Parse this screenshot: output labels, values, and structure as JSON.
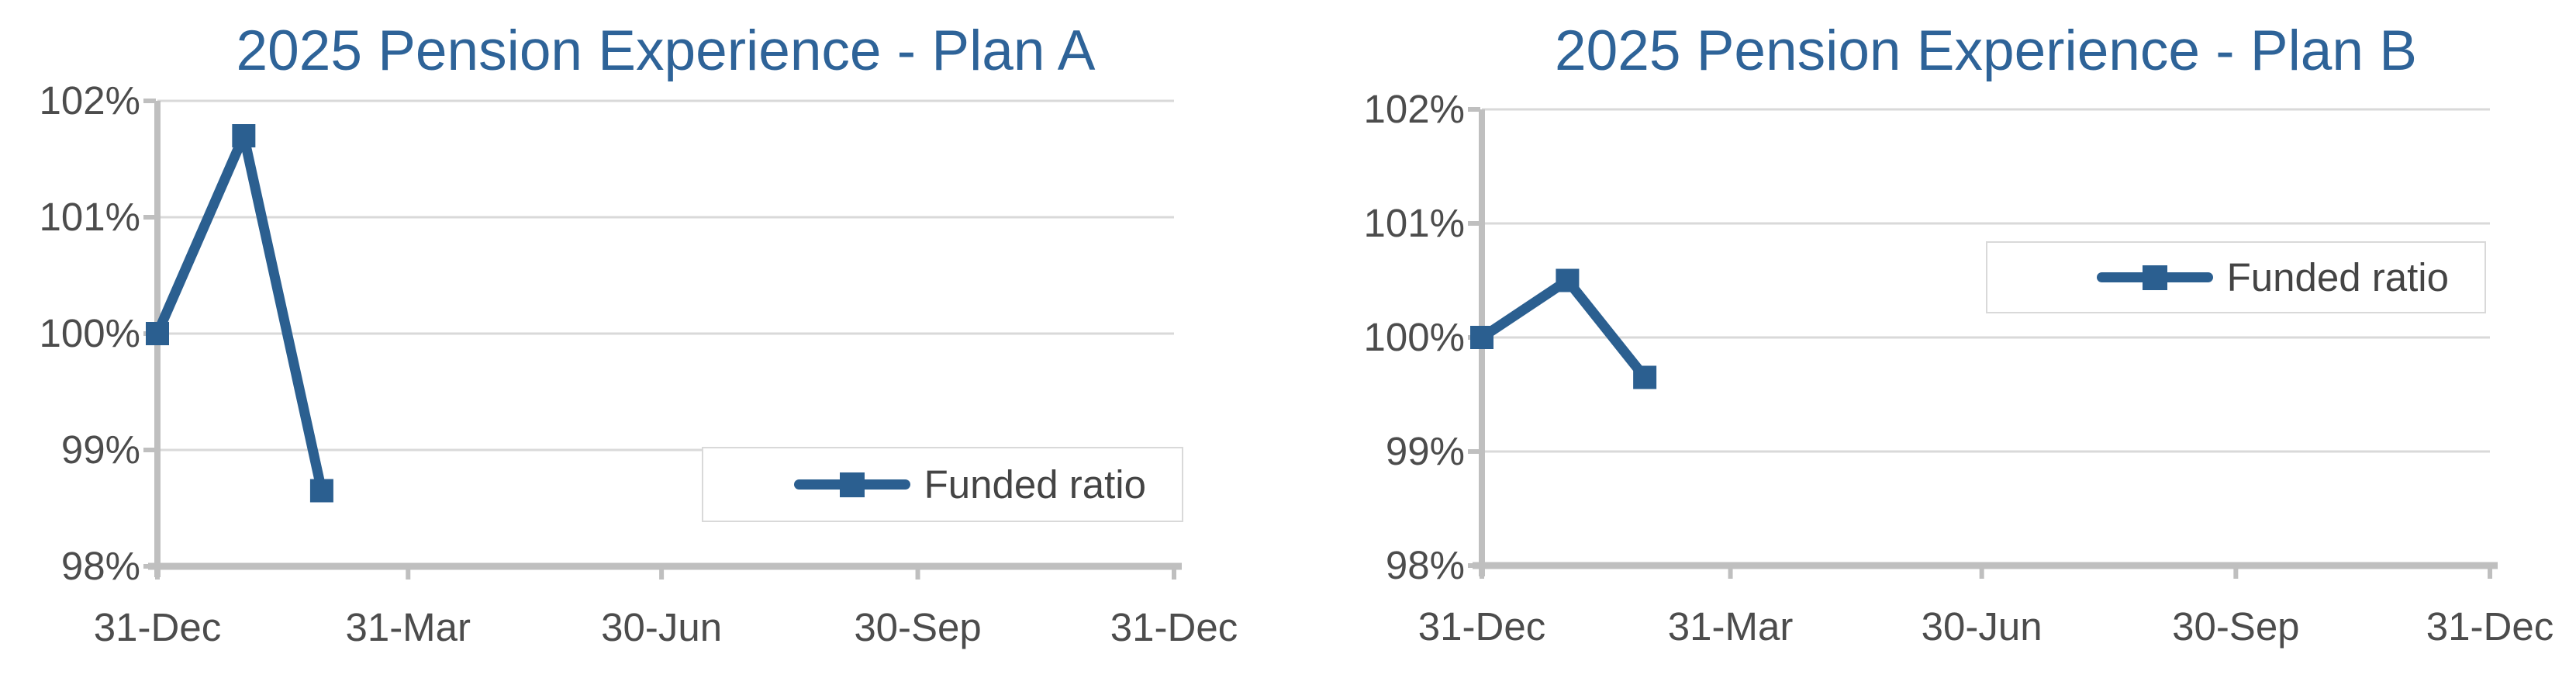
{
  "page": {
    "background": "#FFFFFF"
  },
  "palette": {
    "series_blue": "#2B5F90",
    "title_blue": "#2E6398",
    "axis_text": "#4C4C4C",
    "axis_line": "#BFBFBF",
    "gridline": "#D9D9D9",
    "legend_border": "#D9D9D9",
    "legend_bg": "#FFFFFF"
  },
  "chart_data": [
    {
      "type": "line",
      "title": "2025 Pension Experience - Plan A",
      "xlabel": "",
      "ylabel": "",
      "grid": "horizontal",
      "legend_position": "inside-bottom-right",
      "ylim": [
        98,
        102
      ],
      "xlim_days": [
        0,
        365
      ],
      "y_ticks": [
        {
          "value": 102,
          "label": "102%"
        },
        {
          "value": 101,
          "label": "101%"
        },
        {
          "value": 100,
          "label": "100%"
        },
        {
          "value": 99,
          "label": "99%"
        },
        {
          "value": 98,
          "label": "98%"
        }
      ],
      "x_ticks": [
        {
          "day": 0,
          "label": "31-Dec"
        },
        {
          "day": 90,
          "label": "31-Mar"
        },
        {
          "day": 181,
          "label": "30-Jun"
        },
        {
          "day": 273,
          "label": "30-Sep"
        },
        {
          "day": 365,
          "label": "31-Dec"
        }
      ],
      "series": [
        {
          "name": "Funded ratio",
          "color": "#2B5F90",
          "marker": "square",
          "points": [
            {
              "date": "31-Dec",
              "day": 0,
              "value": 100.0
            },
            {
              "date": "31-Jan",
              "day": 31,
              "value": 101.7
            },
            {
              "date": "28-Feb",
              "day": 59,
              "value": 98.65
            }
          ]
        }
      ]
    },
    {
      "type": "line",
      "title": "2025 Pension Experience - Plan B",
      "xlabel": "",
      "ylabel": "",
      "grid": "horizontal",
      "legend_position": "inside-middle-right",
      "ylim": [
        98,
        102
      ],
      "xlim_days": [
        0,
        365
      ],
      "y_ticks": [
        {
          "value": 102,
          "label": "102%"
        },
        {
          "value": 101,
          "label": "101%"
        },
        {
          "value": 100,
          "label": "100%"
        },
        {
          "value": 99,
          "label": "99%"
        },
        {
          "value": 98,
          "label": "98%"
        }
      ],
      "x_ticks": [
        {
          "day": 0,
          "label": "31-Dec"
        },
        {
          "day": 90,
          "label": "31-Mar"
        },
        {
          "day": 181,
          "label": "30-Jun"
        },
        {
          "day": 273,
          "label": "30-Sep"
        },
        {
          "day": 365,
          "label": "31-Dec"
        }
      ],
      "series": [
        {
          "name": "Funded ratio",
          "color": "#2B5F90",
          "marker": "square",
          "points": [
            {
              "date": "31-Dec",
              "day": 0,
              "value": 100.0
            },
            {
              "date": "31-Jan",
              "day": 31,
              "value": 100.5
            },
            {
              "date": "28-Feb",
              "day": 59,
              "value": 99.65
            }
          ]
        }
      ]
    }
  ]
}
